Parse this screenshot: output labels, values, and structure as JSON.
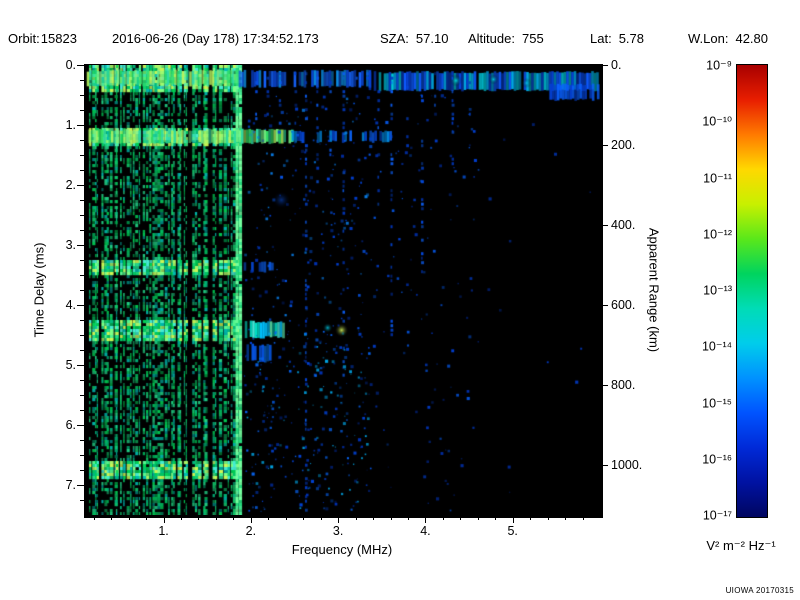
{
  "header": {
    "fields": [
      {
        "label": "Orbit:",
        "value": "15823"
      },
      {
        "label": "",
        "value": "2016-06-26 (Day 178) 17:34:52.173"
      },
      {
        "label": "SZA:",
        "value": "57.10"
      },
      {
        "label": "Altitude:",
        "value": "755"
      },
      {
        "label": "Lat:",
        "value": "5.78"
      },
      {
        "label": "W.Lon:",
        "value": "42.80"
      }
    ]
  },
  "watermark": "UIOWA 20170315",
  "chart_data": {
    "type": "heatmap",
    "title": "",
    "xlabel": "Frequency (MHz)",
    "ylabel": "Time Delay (ms)",
    "y2label": "Apparent Range (km)",
    "xlim": [
      0.1,
      6.0
    ],
    "ylim_ms": [
      0.0,
      7.5
    ],
    "y2lim_km": [
      0.0,
      1125.0
    ],
    "background": "#000000",
    "xticks": {
      "values": [
        1,
        2,
        3,
        4,
        5
      ],
      "labels": [
        "1.",
        "2.",
        "3.",
        "4.",
        "5."
      ]
    },
    "yticks": {
      "values": [
        0,
        1,
        2,
        3,
        4,
        5,
        6,
        7
      ],
      "labels": [
        "0.",
        "1.",
        "2.",
        "3.",
        "4.",
        "5.",
        "6.",
        "7."
      ]
    },
    "y2ticks": {
      "values": [
        0,
        200,
        400,
        600,
        800,
        1000
      ],
      "labels": [
        "0.",
        "200.",
        "400.",
        "600.",
        "800.",
        "1000."
      ]
    },
    "colorbar": {
      "scale": "log",
      "min_exp": -17,
      "max_exp": -9,
      "units": "V² m⁻² Hz⁻¹",
      "labels": [
        "10⁻⁹",
        "10⁻¹⁰",
        "10⁻¹¹",
        "10⁻¹²",
        "10⁻¹³",
        "10⁻¹⁴",
        "10⁻¹⁵",
        "10⁻¹⁶",
        "10⁻¹⁷"
      ],
      "gradient": [
        "#a80000",
        "#e81e00",
        "#ff7a00",
        "#ffd800",
        "#c8f000",
        "#5ae81a",
        "#00d45e",
        "#00dcb6",
        "#00cdeb",
        "#0092ff",
        "#0054ff",
        "#002ad8",
        "#0012a2",
        "#000660"
      ]
    },
    "description": "Radar-sounder ionogram spectrogram: dense green/cyan electron plasma oscillation harmonic stripes below ~1.85 MHz at all delays, bright echo band near zero delay across all frequencies, strong horizontal band near 1.2 ms out to ~3.6 MHz, cyan ionospheric echo near 2.0-2.3 MHz at ~4.4 ms with a yellow-green spot near 3.0 MHz, and scattered faint blue noise speckles between 2 and 4.5 MHz on a black background.",
    "features": [
      {
        "kind": "stripes",
        "name": "electron-plasma-harmonic-stripes",
        "desc": "dense vertical green/cyan stripes spanning all time delays below 1.86 MHz",
        "f": [
          0.12,
          1.86
        ],
        "t": [
          0,
          7.5
        ],
        "count": 48,
        "skip": 0.08,
        "colors": [
          "#00c562",
          "#00b97e",
          "#12cf6e",
          "#00bdb2",
          "#24da8c",
          "#00d055"
        ],
        "bright_colors": [
          "#55f58e",
          "#aaf566",
          "#44ecd2",
          "#7dff85",
          "#ccf755"
        ],
        "bright": [
          [
            0,
            0.4
          ],
          [
            1.02,
            1.34
          ],
          [
            3.22,
            3.48
          ],
          [
            4.25,
            4.58
          ],
          [
            6.6,
            6.88
          ]
        ]
      },
      {
        "kind": "stripes",
        "name": "plasma-line-1.85MHz",
        "desc": "solid bright column at the 1.85 MHz edge",
        "f": [
          1.82,
          1.87
        ],
        "t": [
          0,
          7.5
        ],
        "count": 2,
        "skip": 0,
        "colors": [
          "#26da7c",
          "#45ea92"
        ],
        "bright_colors": [
          "#74ff9e"
        ],
        "bright": [
          [
            0,
            7.5
          ]
        ]
      },
      {
        "kind": "hband",
        "name": "zero-delay-band-green",
        "desc": "continuous bright green band near zero delay over stripe region",
        "f": [
          0.12,
          1.86
        ],
        "t": [
          0.07,
          0.36
        ],
        "gap": 0.04,
        "fade": 0,
        "colors": [
          "#35e070",
          "#7df08c",
          "#b9f561",
          "#2fd9a5"
        ]
      },
      {
        "kind": "hband",
        "name": "zero-delay-band-mid-blue",
        "desc": "sparse blue band near zero delay 1.9-3.3 MHz",
        "f": [
          1.86,
          3.35
        ],
        "t": [
          0.08,
          0.38
        ],
        "gap": 0.34,
        "fade": 0,
        "colors": [
          "#0a4ae2",
          "#1563ff",
          "#0b8fe8"
        ]
      },
      {
        "kind": "hband",
        "name": "zero-delay-band-right-blue",
        "desc": "denser blue band near zero delay 3.3-6 MHz with cyan patches",
        "f": [
          3.35,
          5.97
        ],
        "t": [
          0.1,
          0.44
        ],
        "gap": 0.07,
        "fade": 0,
        "colors": [
          "#0742da",
          "#0d5aff",
          "#00aae8",
          "#00cde0"
        ]
      },
      {
        "kind": "hband",
        "name": "zero-delay-band-right-step",
        "desc": "band steps slightly lower at far right",
        "f": [
          5.42,
          5.97
        ],
        "t": [
          0.3,
          0.6
        ],
        "gap": 0.18,
        "fade": 0,
        "colors": [
          "#0540d0",
          "#0a60ff"
        ]
      },
      {
        "kind": "hband",
        "name": "delay-band-1.2ms-green",
        "desc": "strong green horizontal band at ~1.2 ms out to 2.5 MHz",
        "f": [
          0.14,
          2.47
        ],
        "t": [
          1.06,
          1.32
        ],
        "gap": 0.05,
        "fade": 0,
        "colors": [
          "#34e065",
          "#74f082",
          "#b4f562",
          "#2fd9a0"
        ]
      },
      {
        "kind": "hband",
        "name": "delay-band-1.2ms-blue-tail",
        "desc": "blue dashed continuation of 1.2 ms band to ~3.6 MHz",
        "f": [
          2.47,
          3.62
        ],
        "t": [
          1.09,
          1.3
        ],
        "gap": 0.36,
        "fade": 0.25,
        "colors": [
          "#0648da",
          "#0c66ff",
          "#0089e0"
        ]
      },
      {
        "kind": "hband",
        "name": "delay-band-3.3ms-short",
        "desc": "short faint blue band at ~3.35 ms just past stripe edge",
        "f": [
          1.86,
          2.25
        ],
        "t": [
          3.26,
          3.46
        ],
        "gap": 0.4,
        "fade": 0,
        "colors": [
          "#0748d8",
          "#0d62f5"
        ]
      },
      {
        "kind": "hband",
        "name": "ionosphere-echo-4.4ms",
        "desc": "bright cyan echo 1.95-2.35 MHz at ~4.4 ms",
        "f": [
          1.93,
          2.37
        ],
        "t": [
          4.26,
          4.56
        ],
        "gap": 0.06,
        "fade": 0,
        "colors": [
          "#00e2c9",
          "#49f2e2",
          "#00c2ff",
          "#63f2b2"
        ]
      },
      {
        "kind": "hband",
        "name": "echo-tail-4.8ms",
        "desc": "blue cluster just below the cyan echo",
        "f": [
          1.95,
          2.22
        ],
        "t": [
          4.64,
          4.96
        ],
        "gap": 0.3,
        "fade": 0,
        "colors": [
          "#0653e0",
          "#0a74e8",
          "#00a5d8"
        ]
      },
      {
        "kind": "blob",
        "name": "echo-blob-3.0MHz",
        "desc": "yellow-green spot at 3.0 MHz, 4.4 ms",
        "f": 3.04,
        "t": 4.42,
        "r": 7,
        "color": "rgba(205,238,90,0.95)"
      },
      {
        "kind": "blob",
        "name": "echo-blob-2.9MHz",
        "f": 2.88,
        "t": 4.38,
        "r": 5,
        "color": "rgba(0,205,235,0.85)"
      },
      {
        "kind": "blob",
        "name": "top-cyan-patch-4.35MHz",
        "f": 4.35,
        "t": 0.26,
        "r": 6,
        "color": "rgba(0,225,235,0.9)"
      },
      {
        "kind": "blob",
        "name": "top-cyan-patch-4.8MHz",
        "f": 4.78,
        "t": 0.24,
        "r": 5,
        "color": "rgba(0,215,245,0.85)"
      },
      {
        "kind": "blob",
        "name": "top-cyan-patch-5.15MHz",
        "f": 5.16,
        "t": 0.3,
        "r": 5,
        "color": "rgba(0,205,245,0.8)"
      },
      {
        "kind": "blob",
        "name": "mid-blue-cluster",
        "f": 2.35,
        "t": 2.25,
        "r": 9,
        "color": "rgba(10,80,225,0.55)"
      },
      {
        "kind": "vdashes",
        "name": "vertical-interference-columns",
        "desc": "dotted vertical columns hanging from top at discrete frequencies",
        "p": 0.38,
        "colors": [
          "#0038c2",
          "#0449e2",
          "#0b5df2"
        ],
        "cols": [
          [
            2.05,
            0.95
          ],
          [
            2.18,
            0.8
          ],
          [
            2.32,
            1.25
          ],
          [
            2.5,
            0.95
          ],
          [
            2.62,
            7.45
          ],
          [
            2.75,
            2.35
          ],
          [
            2.9,
            1.55
          ],
          [
            3.05,
            5.2
          ],
          [
            3.2,
            1.1
          ],
          [
            3.32,
            0.85
          ],
          [
            3.45,
            2.55
          ],
          [
            3.6,
            4.7
          ],
          [
            3.78,
            1.35
          ],
          [
            3.95,
            3.5
          ],
          [
            4.1,
            1.0
          ],
          [
            4.3,
            1.65
          ],
          [
            4.5,
            0.85
          ]
        ]
      },
      {
        "kind": "speckles",
        "name": "noise-speckles-mid",
        "f": [
          1.92,
          3.35
        ],
        "t": [
          0.5,
          4.4
        ],
        "count": 210,
        "colors": [
          "#0031b2",
          "#0041da",
          "#0756ea",
          "#0879e2"
        ]
      },
      {
        "kind": "speckles",
        "name": "noise-speckles-lower",
        "f": [
          1.92,
          3.35
        ],
        "t": [
          4.4,
          7.45
        ],
        "count": 290,
        "colors": [
          "#0031b2",
          "#0045de",
          "#0762ef",
          "#00a2e2"
        ]
      },
      {
        "kind": "speckles",
        "name": "noise-speckles-right",
        "f": [
          3.35,
          4.6
        ],
        "t": [
          0.45,
          7.45
        ],
        "count": 125,
        "colors": [
          "#0031b2",
          "#0041da",
          "#0555e2"
        ]
      },
      {
        "kind": "speckles",
        "name": "noise-speckles-far-right",
        "f": [
          4.6,
          5.9
        ],
        "t": [
          0.6,
          7.4
        ],
        "count": 13,
        "colors": [
          "#002b9c",
          "#0039c2"
        ]
      }
    ]
  }
}
